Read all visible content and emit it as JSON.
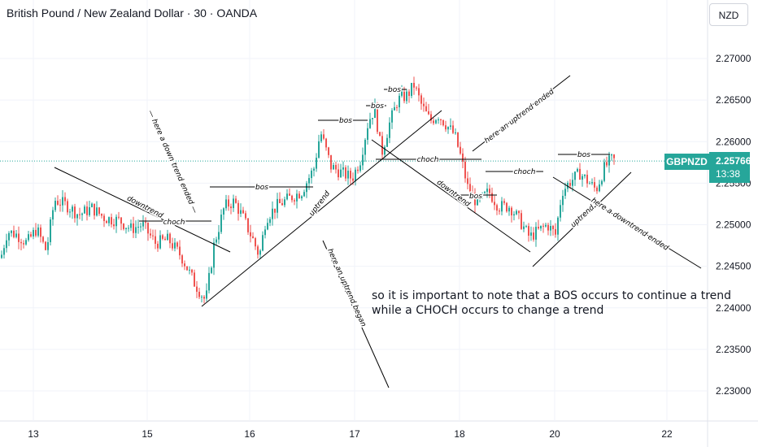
{
  "header": {
    "title": "British Pound / New Zealand Dollar · 30 · OANDA",
    "currency": "NZD"
  },
  "price_badge": {
    "symbol": "GBPNZD",
    "price": "2.25766",
    "countdown": "13:38"
  },
  "note": {
    "line1": "so it is important to note that a BOS occurs to continue a trend",
    "line2": "while a CHOCH occurs to change a trend"
  },
  "colors": {
    "up": "#26a69a",
    "down": "#ef5350",
    "grid": "#f0f3fa",
    "axis_text": "#131722",
    "annotation": "#000000",
    "price_line": "#26a69a"
  },
  "chart_data": {
    "type": "candlestick",
    "title": "British Pound / New Zealand Dollar · 30 · OANDA",
    "y_axis_unit": "NZD",
    "ylim": [
      2.2258,
      2.2742
    ],
    "x_ticks": [
      "13",
      "15",
      "16",
      "17",
      "18",
      "20",
      "22"
    ],
    "y_ticks": [
      "2.27000",
      "2.26500",
      "2.26000",
      "2.25500",
      "2.25000",
      "2.24500",
      "2.24000",
      "2.23500",
      "2.23000"
    ],
    "last_price": 2.25766,
    "path": [
      [
        0,
        2.246
      ],
      [
        8,
        2.2492
      ],
      [
        20,
        2.2488
      ],
      [
        32,
        2.2478
      ],
      [
        44,
        2.2495
      ],
      [
        56,
        2.2468
      ],
      [
        66,
        2.253
      ],
      [
        80,
        2.2524
      ],
      [
        96,
        2.2512
      ],
      [
        112,
        2.252
      ],
      [
        128,
        2.2508
      ],
      [
        146,
        2.2505
      ],
      [
        160,
        2.2495
      ],
      [
        174,
        2.25
      ],
      [
        190,
        2.2478
      ],
      [
        206,
        2.2482
      ],
      [
        222,
        2.2462
      ],
      [
        238,
        2.243
      ],
      [
        252,
        2.2408
      ],
      [
        262,
        2.2475
      ],
      [
        275,
        2.2522
      ],
      [
        287,
        2.2528
      ],
      [
        298,
        2.2508
      ],
      [
        310,
        2.2482
      ],
      [
        318,
        2.2462
      ],
      [
        326,
        2.2508
      ],
      [
        340,
        2.2523
      ],
      [
        355,
        2.2532
      ],
      [
        370,
        2.254
      ],
      [
        385,
        2.2568
      ],
      [
        393,
        2.2612
      ],
      [
        406,
        2.257
      ],
      [
        420,
        2.2562
      ],
      [
        432,
        2.2556
      ],
      [
        442,
        2.2578
      ],
      [
        452,
        2.2625
      ],
      [
        460,
        2.264
      ],
      [
        468,
        2.2585
      ],
      [
        478,
        2.2622
      ],
      [
        488,
        2.265
      ],
      [
        500,
        2.2656
      ],
      [
        508,
        2.2668
      ],
      [
        518,
        2.2642
      ],
      [
        528,
        2.2625
      ],
      [
        538,
        2.2632
      ],
      [
        548,
        2.262
      ],
      [
        558,
        2.2608
      ],
      [
        566,
        2.258
      ],
      [
        574,
        2.2545
      ],
      [
        586,
        2.2525
      ],
      [
        600,
        2.254
      ],
      [
        612,
        2.2522
      ],
      [
        626,
        2.2522
      ],
      [
        638,
        2.2505
      ],
      [
        650,
        2.2485
      ],
      [
        660,
        2.2492
      ],
      [
        672,
        2.25
      ],
      [
        682,
        2.2488
      ],
      [
        690,
        2.254
      ],
      [
        700,
        2.2552
      ],
      [
        712,
        2.2562
      ],
      [
        722,
        2.2552
      ],
      [
        732,
        2.2542
      ],
      [
        742,
        2.2568
      ],
      [
        750,
        2.2578
      ],
      [
        756,
        2.2577
      ]
    ],
    "annotations": [
      {
        "type": "label",
        "text": "bos"
      },
      {
        "type": "label",
        "text": "choch"
      },
      {
        "type": "label",
        "text": "downtrend"
      },
      {
        "type": "label",
        "text": "uptrend"
      },
      {
        "type": "label",
        "text": "here a down trend ended"
      },
      {
        "type": "label",
        "text": "here an uptrend began"
      },
      {
        "type": "label",
        "text": "here an uptrend ended"
      },
      {
        "type": "label",
        "text": "here a downtrend ended"
      }
    ],
    "labels": {
      "bos": "bos",
      "choch": "choch",
      "downtrend": "downtrend",
      "uptrend": "uptrend",
      "down_ended": "— here a down trend  ended —",
      "up_began": "here an uptrend began",
      "up_ended": "here an uptrend  ended",
      "dt_ended": "here a downtrend ended"
    }
  }
}
